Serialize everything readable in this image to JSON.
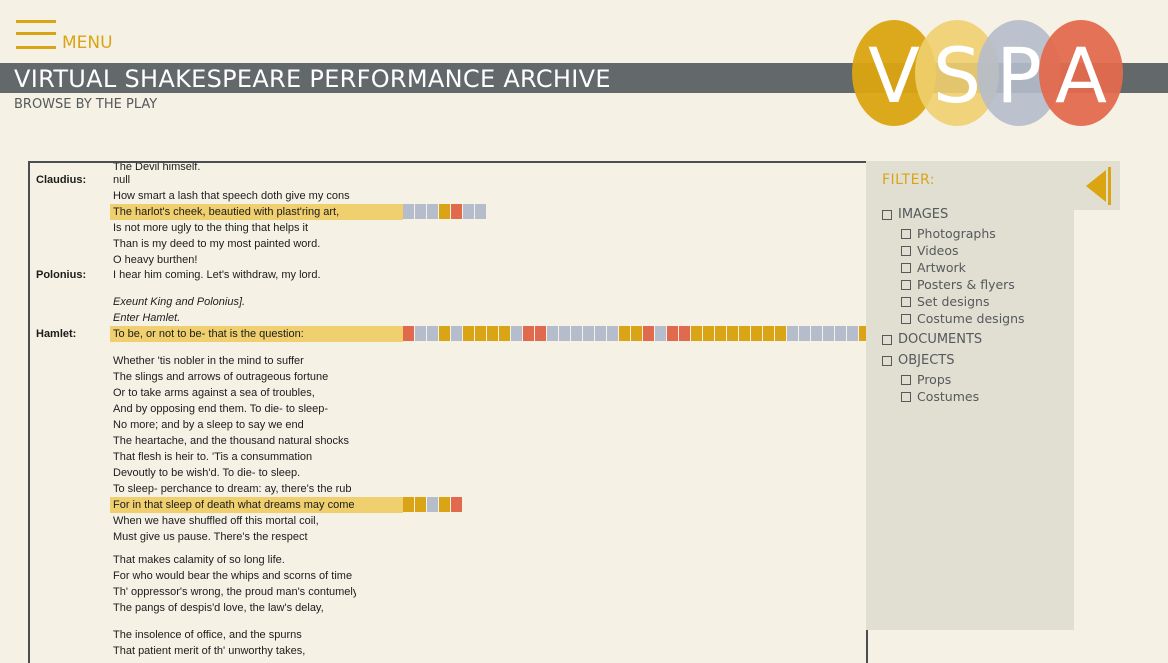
{
  "header": {
    "menu_label": "MENU",
    "title": "VIRTUAL SHAKESPEARE PERFORMANCE ARCHIVE",
    "subtitle": "BROWSE BY THE PLAY",
    "logo_letters": [
      "V",
      "S",
      "P",
      "A"
    ]
  },
  "colors": {
    "gold": "#d9a517",
    "yellow": "#efcf6e",
    "blue": "#b5bccb",
    "red": "#e16a4e",
    "titlebar": "#63686b",
    "background": "#f5f1e4"
  },
  "script": {
    "lines": [
      {
        "text": "The Devil himself."
      },
      {
        "speaker": "Claudius:",
        "text": "null"
      },
      {
        "text": "How smart a lash that speech doth give my cons"
      },
      {
        "text": "The harlot's cheek, beautied with plast'ring art,",
        "highlight": true,
        "markers": [
          "blue",
          "blue",
          "blue",
          "gold",
          "red",
          "blue",
          "blue"
        ]
      },
      {
        "text": "Is not more ugly to the thing that helps it"
      },
      {
        "text": "Than is my deed to my most painted word."
      },
      {
        "text": "O heavy burthen!"
      },
      {
        "speaker": "Polonius:",
        "text": "I hear him coming. Let's withdraw, my lord."
      },
      {
        "text": "Exeunt King and Polonius].",
        "italic": true
      },
      {
        "text": "Enter Hamlet.",
        "italic": true
      },
      {
        "speaker": "Hamlet:",
        "text": "To be, or not to be- that is the question:",
        "highlight": true,
        "markers": [
          "red",
          "blue",
          "blue",
          "gold",
          "blue",
          "gold",
          "gold",
          "gold",
          "gold",
          "blue",
          "red",
          "red",
          "blue",
          "blue",
          "blue",
          "blue",
          "blue",
          "blue",
          "gold",
          "gold",
          "red",
          "blue",
          "red",
          "red",
          "gold",
          "gold",
          "gold",
          "gold",
          "gold",
          "gold",
          "gold",
          "gold",
          "blue",
          "blue",
          "blue",
          "blue",
          "blue",
          "blue",
          "gold"
        ]
      },
      {
        "text": "Whether 'tis nobler in the mind to suffer"
      },
      {
        "text": "The slings and arrows of outrageous fortune"
      },
      {
        "text": "Or to take arms against a sea of troubles,"
      },
      {
        "text": "And by opposing end them. To die- to sleep-"
      },
      {
        "text": "No more; and by a sleep to say we end"
      },
      {
        "text": "The heartache, and the thousand natural shocks"
      },
      {
        "text": "That flesh is heir to. 'Tis a consummation"
      },
      {
        "text": "Devoutly to be wish'd. To die- to sleep."
      },
      {
        "text": "To sleep- perchance to dream: ay, there's the rub"
      },
      {
        "text": "For in that sleep of death what dreams may come",
        "highlight": true,
        "markers": [
          "gold",
          "gold",
          "blue",
          "gold",
          "red"
        ]
      },
      {
        "text": "When we have shuffled off this mortal coil,"
      },
      {
        "text": "Must give us pause. There's the respect"
      },
      {
        "text": "That makes calamity of so long life."
      },
      {
        "text": "For who would bear the whips and scorns of time"
      },
      {
        "text": "Th' oppressor's wrong, the proud man's contumely"
      },
      {
        "text": "The pangs of despis'd love, the law's delay,"
      },
      {
        "text": "The insolence of office, and the spurns"
      },
      {
        "text": "That patient merit of th' unworthy takes,"
      }
    ]
  },
  "filter": {
    "title": "FILTER:",
    "images_label": "IMAGES",
    "photographs_label": "Photographs",
    "videos_label": "Videos",
    "artwork_label": "Artwork",
    "posters_label": "Posters & flyers",
    "set_designs_label": "Set designs",
    "costume_designs_label": "Costume designs",
    "documents_label": "DOCUMENTS",
    "objects_label": "OBJECTS",
    "props_label": "Props",
    "costumes_label": "Costumes"
  }
}
